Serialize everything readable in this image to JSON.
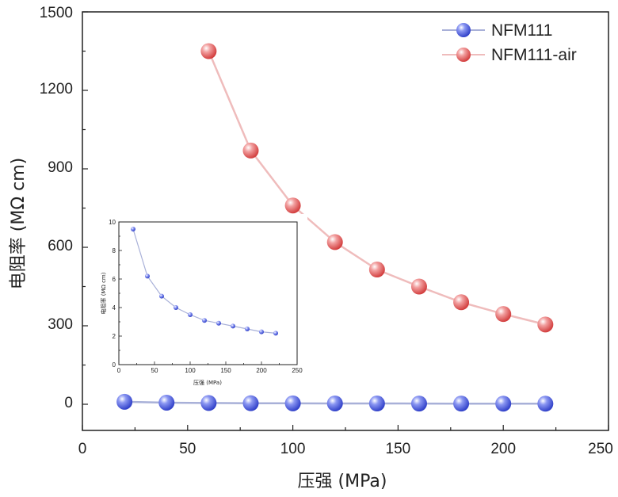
{
  "chart_data": [
    {
      "type": "line",
      "title": "",
      "xlabel": "压强 (MPa)",
      "ylabel": "电阻率 (MΩ cm)",
      "xlim": [
        0,
        250
      ],
      "ylim": [
        -100,
        1500
      ],
      "xticks": [
        "0",
        "50",
        "100",
        "150",
        "200",
        "250"
      ],
      "yticks": [
        "0",
        "300",
        "600",
        "900",
        "1200",
        "1500"
      ],
      "legend_position": "top-right",
      "series": [
        {
          "name": "NFM111",
          "color": "#5566e6",
          "line_color": "#a8b0d8",
          "x": [
            20,
            40,
            60,
            80,
            100,
            120,
            140,
            160,
            180,
            200,
            220
          ],
          "y": [
            9.5,
            6.2,
            4.8,
            4.0,
            3.5,
            3.1,
            2.9,
            2.7,
            2.5,
            2.3,
            2.2
          ]
        },
        {
          "name": "NFM111-air",
          "color": "#e86868",
          "line_color": "#efbcbc",
          "x": [
            60,
            80,
            100,
            120,
            140,
            160,
            180,
            200,
            220
          ],
          "y": [
            1350,
            970,
            760,
            620,
            515,
            450,
            390,
            345,
            305
          ]
        }
      ]
    },
    {
      "type": "line",
      "title": "",
      "xlabel": "压强 (MPa)",
      "ylabel": "电阻率 (MΩ cm)",
      "xlim": [
        0,
        250
      ],
      "ylim": [
        0,
        10
      ],
      "xticks": [
        "0",
        "50",
        "100",
        "150",
        "200",
        "250"
      ],
      "yticks": [
        "0",
        "2",
        "4",
        "6",
        "8",
        "10"
      ],
      "series": [
        {
          "name": "NFM111",
          "color": "#5566e6",
          "line_color": "#a8b0d8",
          "x": [
            20,
            40,
            60,
            80,
            100,
            120,
            140,
            160,
            180,
            200,
            220
          ],
          "y": [
            9.5,
            6.2,
            4.8,
            4.0,
            3.5,
            3.1,
            2.9,
            2.7,
            2.5,
            2.3,
            2.2
          ]
        }
      ]
    }
  ]
}
